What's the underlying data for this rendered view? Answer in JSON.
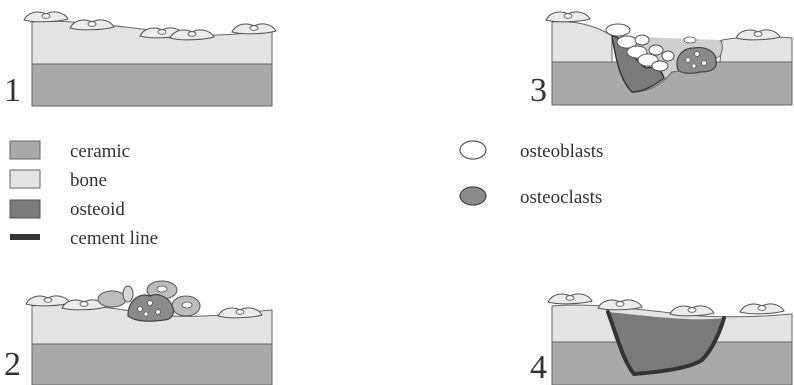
{
  "panels": [
    {
      "number": "1"
    },
    {
      "number": "2"
    },
    {
      "number": "3"
    },
    {
      "number": "4"
    }
  ],
  "legend": {
    "materials": [
      {
        "label": "ceramic",
        "color": "#a9a9a9"
      },
      {
        "label": "bone",
        "color": "#e4e4e4"
      },
      {
        "label": "osteoid",
        "color": "#7a7a7a"
      },
      {
        "label": "cement line",
        "color": "#333333"
      }
    ],
    "cells": [
      {
        "label": "osteoblasts",
        "color": "#ffffff"
      },
      {
        "label": "osteoclasts",
        "color": "#8a8a8a"
      }
    ]
  }
}
